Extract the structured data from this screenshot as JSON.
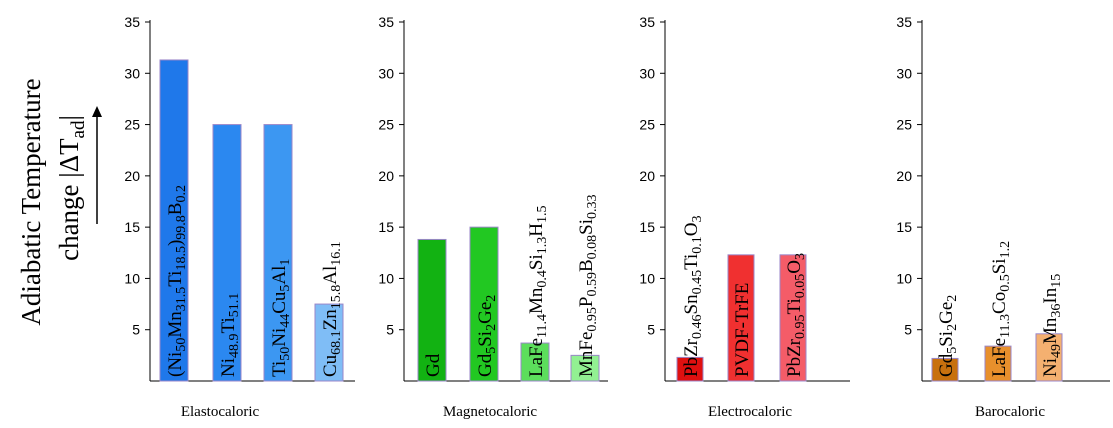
{
  "ylabel_line1": "Adiabatic Temperature",
  "ylabel_line2_prefix": "change |ΔT",
  "ylabel_line2_sub": "ad",
  "ylabel_line2_suffix": "|",
  "chart_data": [
    {
      "type": "bar",
      "category_label": "Elastocaloric",
      "ylim": [
        0,
        35
      ],
      "yticks": [
        "5",
        "10",
        "15",
        "20",
        "25",
        "30",
        "35"
      ],
      "grid": false,
      "color": "#2e86f0",
      "labels": [
        [
          [
            "(Ni",
            "n"
          ],
          [
            "50",
            "s"
          ],
          [
            "Mn",
            "n"
          ],
          [
            "31.5",
            "s"
          ],
          [
            "Ti",
            "n"
          ],
          [
            "18.5",
            "s"
          ],
          [
            ")",
            "n"
          ],
          [
            "99.8",
            "s"
          ],
          [
            "B",
            "n"
          ],
          [
            "0.2",
            "s"
          ]
        ],
        [
          [
            "Ni",
            "n"
          ],
          [
            "48.9",
            "s"
          ],
          [
            "Ti",
            "n"
          ],
          [
            "51.1",
            "s"
          ]
        ],
        [
          [
            "Ti",
            "n"
          ],
          [
            "50",
            "s"
          ],
          [
            "Ni",
            "n"
          ],
          [
            "44",
            "s"
          ],
          [
            "Cu",
            "n"
          ],
          [
            "5",
            "s"
          ],
          [
            "Al",
            "n"
          ],
          [
            "1",
            "s"
          ]
        ],
        [
          [
            "Cu",
            "n"
          ],
          [
            "68.1",
            "s"
          ],
          [
            "Zn",
            "n"
          ],
          [
            "15.8",
            "s"
          ],
          [
            "Al",
            "n"
          ],
          [
            "16.1",
            "s"
          ]
        ]
      ],
      "values": [
        31.3,
        25.0,
        25.0,
        7.5
      ],
      "colors": [
        "#1f78ea",
        "#2b88f0",
        "#3c97f2",
        "#7fbdf6"
      ]
    },
    {
      "type": "bar",
      "category_label": "Magnetocaloric",
      "ylim": [
        0,
        35
      ],
      "yticks": [
        "5",
        "10",
        "15",
        "20",
        "25",
        "30",
        "35"
      ],
      "grid": false,
      "color": "#1ec41e",
      "labels": [
        [
          [
            "Gd",
            "n"
          ]
        ],
        [
          [
            "Gd",
            "n"
          ],
          [
            "5",
            "s"
          ],
          [
            "Si",
            "n"
          ],
          [
            "2",
            "s"
          ],
          [
            "Ge",
            "n"
          ],
          [
            "2",
            "s"
          ]
        ],
        [
          [
            "LaFe",
            "n"
          ],
          [
            "11.4",
            "s"
          ],
          [
            "Mn",
            "n"
          ],
          [
            "0.4",
            "s"
          ],
          [
            "Si",
            "n"
          ],
          [
            "1.3",
            "s"
          ],
          [
            "H",
            "n"
          ],
          [
            "1.5",
            "s"
          ]
        ],
        [
          [
            "MnFe",
            "n"
          ],
          [
            "0.95",
            "s"
          ],
          [
            "P",
            "n"
          ],
          [
            "0.59",
            "s"
          ],
          [
            "B",
            "n"
          ],
          [
            "0.08",
            "s"
          ],
          [
            "Si",
            "n"
          ],
          [
            "0.33",
            "s"
          ]
        ]
      ],
      "values": [
        13.8,
        15.0,
        3.7,
        2.5
      ],
      "colors": [
        "#12b212",
        "#22c822",
        "#5cde5c",
        "#92f092"
      ]
    },
    {
      "type": "bar",
      "category_label": "Electrocaloric",
      "ylim": [
        0,
        35
      ],
      "yticks": [
        "5",
        "10",
        "15",
        "20",
        "25",
        "30",
        "35"
      ],
      "grid": false,
      "color": "#ee2a2a",
      "labels": [
        [
          [
            "Pb",
            "n"
          ],
          [
            "Zr",
            "n"
          ],
          [
            "0.46",
            "s"
          ],
          [
            "Sn",
            "n"
          ],
          [
            "0.45",
            "s"
          ],
          [
            "Ti",
            "n"
          ],
          [
            "0.1",
            "s"
          ],
          [
            "O",
            "n"
          ],
          [
            "3",
            "s"
          ]
        ],
        [
          [
            "PVDF-TrFE",
            "n"
          ]
        ],
        [
          [
            "PbZr",
            "n"
          ],
          [
            "0.95",
            "s"
          ],
          [
            "Ti",
            "n"
          ],
          [
            "0.05",
            "s"
          ],
          [
            "O",
            "n"
          ],
          [
            "3",
            "s"
          ]
        ]
      ],
      "values": [
        2.3,
        12.3,
        12.3
      ],
      "colors": [
        "#e01010",
        "#f03030",
        "#f45c68"
      ]
    },
    {
      "type": "bar",
      "category_label": "Barocaloric",
      "ylim": [
        0,
        35
      ],
      "yticks": [
        "5",
        "10",
        "15",
        "20",
        "25",
        "30",
        "35"
      ],
      "grid": false,
      "color": "#e88a2a",
      "labels": [
        [
          [
            "Gd",
            "n"
          ],
          [
            "5",
            "s"
          ],
          [
            "Si",
            "n"
          ],
          [
            "2",
            "s"
          ],
          [
            "Ge",
            "n"
          ],
          [
            "2",
            "s"
          ]
        ],
        [
          [
            "LaFe",
            "n"
          ],
          [
            "11.3",
            "s"
          ],
          [
            "Co",
            "n"
          ],
          [
            "0.5",
            "s"
          ],
          [
            "Si",
            "n"
          ],
          [
            "1.2",
            "s"
          ]
        ],
        [
          [
            "Ni",
            "n"
          ],
          [
            "49",
            "s"
          ],
          [
            "Mn",
            "n"
          ],
          [
            "36",
            "s"
          ],
          [
            "In",
            "n"
          ],
          [
            "15",
            "s"
          ]
        ]
      ],
      "values": [
        2.2,
        3.4,
        4.6
      ],
      "colors": [
        "#c8700e",
        "#e8902c",
        "#f4b070"
      ]
    }
  ]
}
